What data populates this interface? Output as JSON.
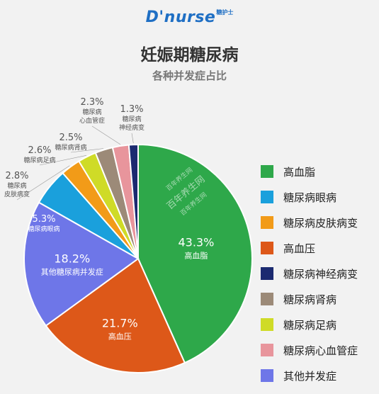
{
  "header": {
    "logo_text": "D'nurse",
    "logo_sub": "糖护士",
    "title": "妊娠期糖尿病",
    "subtitle": "各种并发症占比"
  },
  "watermark": [
    "百年养生网",
    "百年养生网",
    "百年养生网"
  ],
  "colors": {
    "background": "#f2f2f2",
    "slice_border": "#ffffff"
  },
  "chart_data": {
    "type": "pie",
    "title": "妊娠期糖尿病",
    "subtitle": "各种并发症占比",
    "start_angle_deg": 0,
    "direction": "clockwise",
    "legend_position": "right",
    "slices": [
      {
        "legend": "高血脂",
        "label": "高血脂",
        "value": 43.3,
        "pct": "43.3%",
        "color": "#2ea84a"
      },
      {
        "legend": "高血压",
        "label": "高血压",
        "value": 21.7,
        "pct": "21.7%",
        "color": "#dd5819"
      },
      {
        "legend": "其他并发症",
        "label": "其他糖尿病并发症",
        "value": 18.2,
        "pct": "18.2%",
        "color": "#6e76e8"
      },
      {
        "legend": "糖尿病眼病",
        "label": "糖尿病眼病",
        "value": 5.3,
        "pct": "5.3%",
        "color": "#1aa0dc"
      },
      {
        "legend": "糖尿病皮肤病变",
        "label": "糖尿病皮肤病变",
        "value": 2.8,
        "pct": "2.8%",
        "color": "#f29b18"
      },
      {
        "legend": "糖尿病足病",
        "label": "糖尿病足病",
        "value": 2.6,
        "pct": "2.6%",
        "color": "#cfdb27"
      },
      {
        "legend": "糖尿病肾病",
        "label": "糖尿病肾病",
        "value": 2.5,
        "pct": "2.5%",
        "color": "#9c8a78"
      },
      {
        "legend": "糖尿病心血管症",
        "label": "糖尿病心血管症",
        "value": 2.3,
        "pct": "2.3%",
        "color": "#e8959c"
      },
      {
        "legend": "糖尿病神经病变",
        "label": "糖尿病神经病变",
        "value": 1.3,
        "pct": "1.3%",
        "color": "#1b2a70"
      }
    ],
    "legend_order": [
      "高血脂",
      "糖尿病眼病",
      "糖尿病皮肤病变",
      "高血压",
      "糖尿病神经病变",
      "糖尿病肾病",
      "糖尿病足病",
      "糖尿病心血管症",
      "其他并发症"
    ]
  }
}
